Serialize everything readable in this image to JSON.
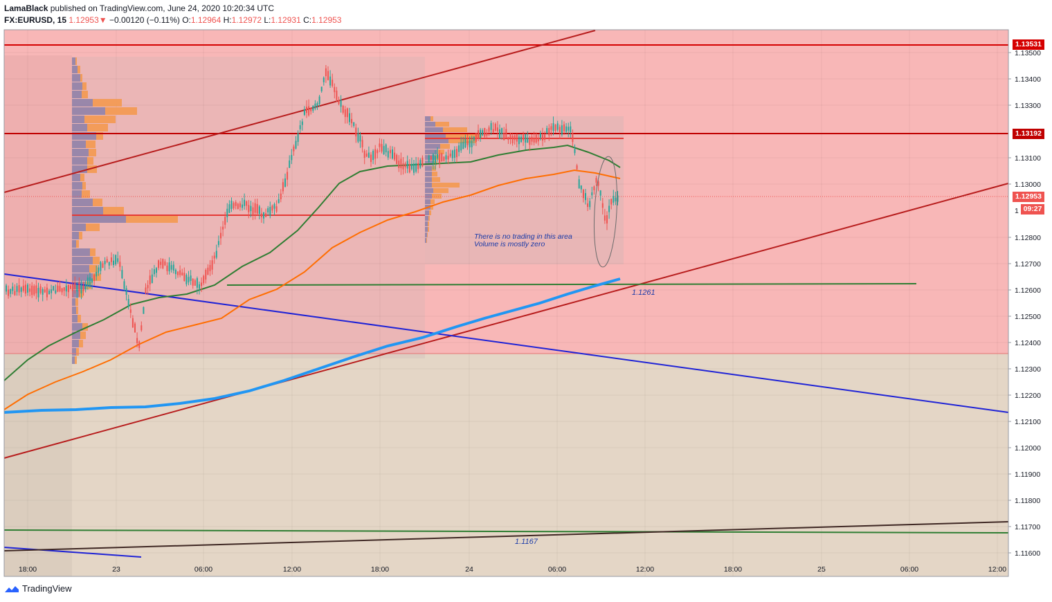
{
  "header": {
    "publisher": "LamaBlack",
    "published_text": "published on TradingView.com, June 24, 2020 10:20:34 UTC",
    "symbol": "FX:EURUSD, 15",
    "last": "1.12953",
    "change_arrow": "▼",
    "change": "−0.00120 (−0.11%)",
    "o_label": "O:",
    "o_value": "1.12964",
    "h_label": "H:",
    "h_value": "1.12972",
    "l_label": "L:",
    "l_value": "1.12931",
    "c_label": "C:",
    "c_value": "1.12953"
  },
  "price_axis": {
    "ticks": [
      "1.13500",
      "1.13400",
      "1.13300",
      "1.13100",
      "1.13000",
      "1.12800",
      "1.12700",
      "1.12600",
      "1.12500",
      "1.12400",
      "1.12300",
      "1.12200",
      "1.12100",
      "1.12000",
      "1.11900",
      "1.11800",
      "1.11700",
      "1.11600"
    ],
    "partial_tick": "1",
    "badges": {
      "level_top": "1.13531",
      "level_mid": "1.13192",
      "current": "1.12953",
      "countdown": "09:27"
    }
  },
  "time_axis": {
    "ticks": [
      "18:00",
      "23",
      "06:00",
      "12:00",
      "18:00",
      "24",
      "06:00",
      "12:00",
      "18:00",
      "25",
      "06:00",
      "12:00"
    ]
  },
  "annotations": {
    "note_line1": "There is no trading in this area",
    "note_line2": "Volume is mostly zero",
    "level_1": "1.1261",
    "level_2": "1.1167"
  },
  "colors": {
    "red_zone": "#f8b7b7",
    "tan_zone": "#e4d6c6",
    "resistance": "#d50000",
    "trendline": "#b71c1c",
    "ma_green": "#2e7d32",
    "ma_orange": "#ff6d00",
    "ma_blue": "#2196f3",
    "down_line": "#1e22d6"
  },
  "footer": {
    "brand": "TradingView"
  }
}
